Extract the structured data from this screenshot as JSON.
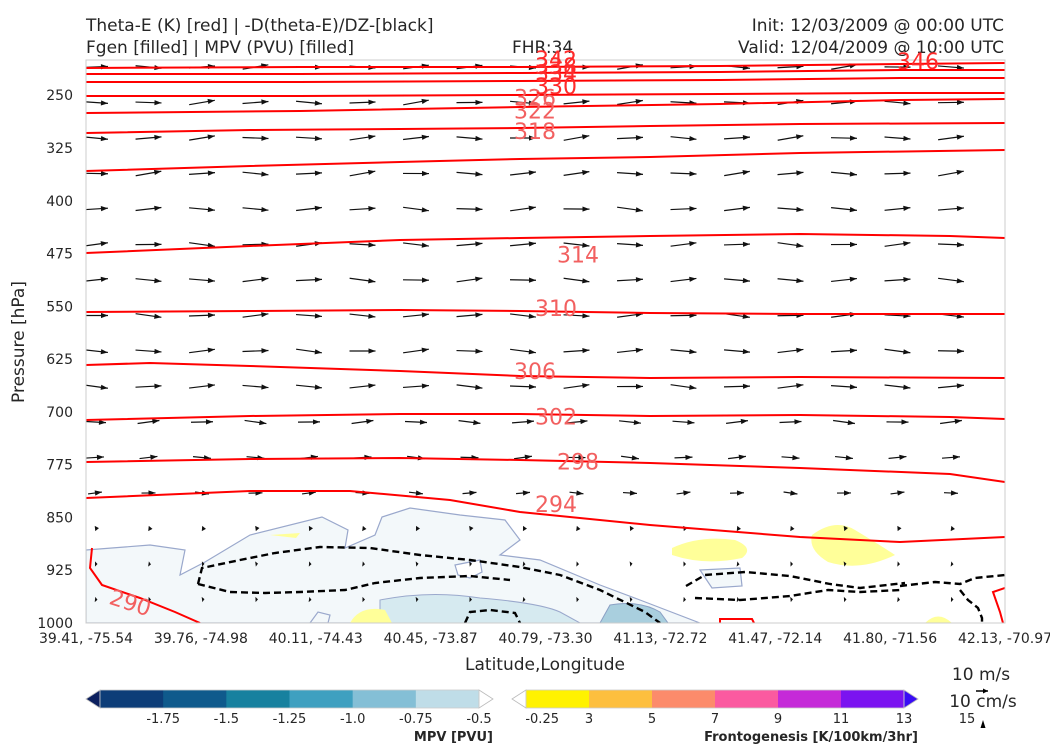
{
  "titles": {
    "left_line1": "Theta-E (K) [red] | -D(theta-E)/DZ-[black]",
    "left_line2": "Fgen [filled] | MPV (PVU) [filled]",
    "center": "FHR:34",
    "right_line1": "Init: 12/03/2009 @ 00:00 UTC",
    "right_line2": "Valid: 12/04/2009 @ 10:00 UTC"
  },
  "chart_data": {
    "type": "cross-section",
    "xlabel": "Latitude,Longitude",
    "ylabel": "Pressure [hPa]",
    "x_ticks": [
      "39.41, -75.54",
      "39.76, -74.98",
      "40.11, -74.43",
      "40.45, -73.87",
      "40.79, -73.30",
      "41.13, -72.72",
      "41.47, -72.14",
      "41.80, -71.56",
      "42.13, -70.97"
    ],
    "y_ticks": [
      250,
      325,
      400,
      475,
      550,
      625,
      700,
      775,
      850,
      925,
      1000
    ],
    "ylim": [
      1000,
      200
    ],
    "y_scale": "inverted linear",
    "theta_e_contours": [
      {
        "level": "290",
        "label_x_frac": 0.04,
        "pressure": 980
      },
      {
        "level": "294",
        "label_x_frac": 0.5,
        "pressure": 842
      },
      {
        "level": "298",
        "label_x_frac": 0.5,
        "pressure": 782
      },
      {
        "level": "302",
        "label_x_frac": 0.5,
        "pressure": 718
      },
      {
        "level": "306",
        "label_x_frac": 0.5,
        "pressure": 653
      },
      {
        "level": "310",
        "label_x_frac": 0.5,
        "pressure": 564
      },
      {
        "level": "314",
        "label_x_frac": 0.5,
        "pressure": 488
      },
      {
        "level": "318",
        "label_x_frac": 0.5,
        "pressure": 312
      },
      {
        "level": "322",
        "label_x_frac": 0.5,
        "pressure": 283
      },
      {
        "level": "326",
        "label_x_frac": 0.5,
        "pressure": 265
      },
      {
        "level": "330",
        "label_x_frac": 0.5,
        "pressure": 248
      },
      {
        "level": "334",
        "label_x_frac": 0.5,
        "pressure": 230
      },
      {
        "level": "338",
        "label_x_frac": 0.5,
        "pressure": 220
      },
      {
        "level": "342",
        "label_x_frac": 0.5,
        "pressure": 210
      },
      {
        "level": "346",
        "label_x_frac": 0.95,
        "pressure": 208
      }
    ],
    "mpv_colorbar": {
      "label": "MPV [PVU]",
      "ticks": [
        "-1.75",
        "-1.5",
        "-1.25",
        "-1.0",
        "-0.75",
        "-0.5",
        "-0.25"
      ],
      "colors": [
        "#0b1f5e",
        "#0d3d78",
        "#0f5a8c",
        "#17819f",
        "#3fa0c0",
        "#84bfd6",
        "#bfdde8",
        "#ffffff"
      ]
    },
    "fgen_colorbar": {
      "label": "Frontogenesis [K/100km/3hr]",
      "ticks": [
        "3",
        "5",
        "7",
        "9",
        "11",
        "13",
        "15"
      ],
      "colors": [
        "#ffffff",
        "#fff200",
        "#fdbf3f",
        "#fc8b6b",
        "#fb5aa0",
        "#c52ad8",
        "#7b13f0",
        "#3a0cf5"
      ]
    },
    "wind_key": {
      "horizontal": "10 m/s",
      "vertical": "10 cm/s"
    }
  }
}
